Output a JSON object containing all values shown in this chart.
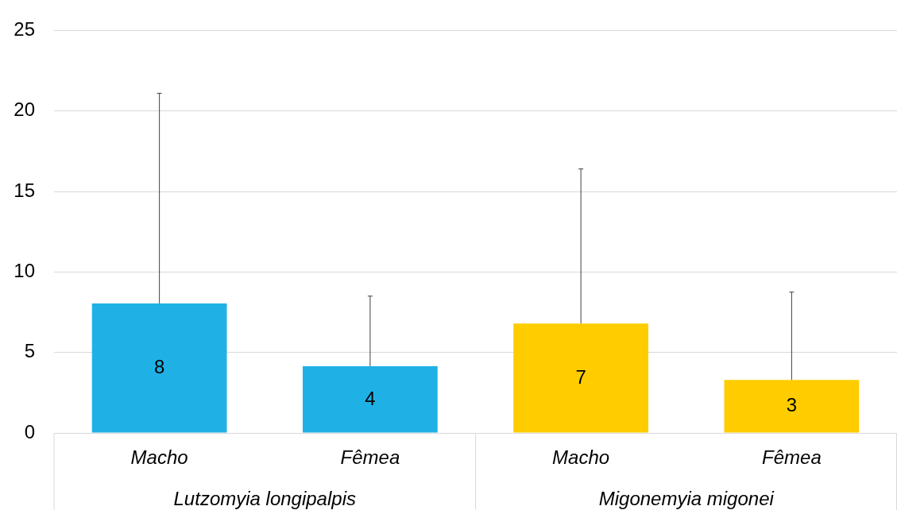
{
  "chart_data": {
    "type": "bar",
    "categories": [
      "Macho",
      "Fêmea",
      "Macho",
      "Fêmea"
    ],
    "values": [
      8.05,
      4.15,
      6.8,
      3.3
    ],
    "colors": [
      "#1fb1e6",
      "#1fb1e6",
      "#ffcc00",
      "#ffcc00"
    ],
    "value_labels": [
      "8",
      "4",
      "7",
      "3"
    ],
    "errors": [
      [
        8.05,
        21.1
      ],
      [
        4.15,
        8.5
      ],
      [
        6.8,
        16.4
      ],
      [
        3.3,
        8.75
      ]
    ],
    "annotations": [
      "Lutzomyia longipalpis",
      "Migonemyia migonei"
    ],
    "ylim": [
      0,
      25
    ],
    "yticks": [
      0,
      5,
      10,
      15,
      20,
      25
    ],
    "grid": "y",
    "legend": false
  }
}
